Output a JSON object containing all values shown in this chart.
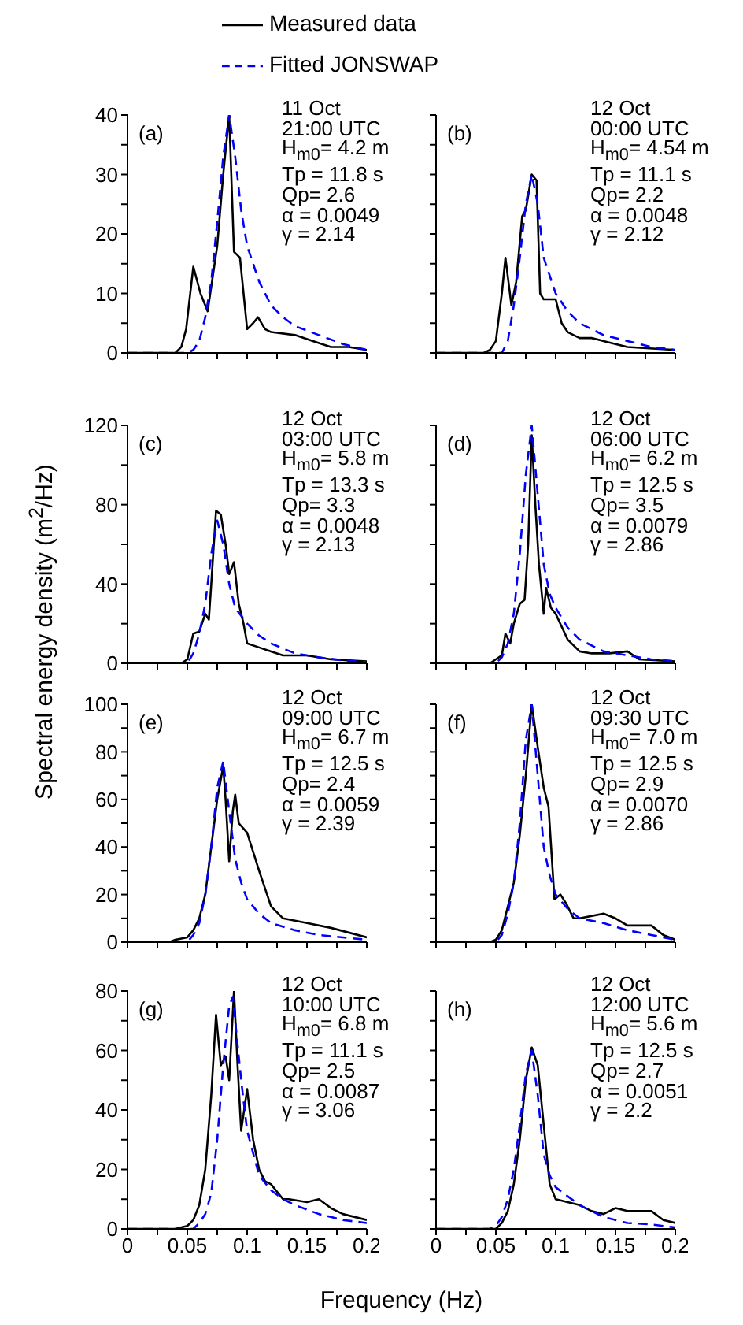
{
  "chart_data": [
    {
      "type": "line",
      "legend": "top",
      "ylim": [
        0,
        40
      ],
      "yticks": [
        0,
        {
          "value": 5,
          "label": null
        },
        10,
        {
          "value": 15,
          "label": null
        },
        20,
        {
          "value": 25,
          "label": null
        },
        30,
        {
          "value": 35,
          "label": null
        },
        40
      ],
      "xlim": [
        0,
        0.2
      ],
      "xticks": [
        0,
        {
          "value": 0.025,
          "label": null
        },
        0.05,
        {
          "value": 0.075,
          "label": null
        },
        0.1,
        {
          "value": 0.125,
          "label": null
        },
        0.15,
        {
          "value": 0.175,
          "label": null
        },
        0.2
      ],
      "tick_labels": "y",
      "annotations": [
        "(a)",
        "11 Oct",
        "21:00 UTC",
        "H$_{m0}$= 4.2 m",
        "Tp = 11.8 s",
        "Qp= 2.6",
        "α = 0.0049",
        "γ = 2.14"
      ],
      "series": [
        {
          "name": "Measured data",
          "color": "#000000",
          "line_style": "solid",
          "x": [
            0,
            0.04,
            0.045,
            0.049,
            0.055,
            0.061,
            0.067,
            0.075,
            0.08,
            0.085,
            0.089,
            0.094,
            0.1,
            0.105,
            0.109,
            0.115,
            0.12,
            0.14,
            0.155,
            0.17,
            0.185,
            0.2
          ],
          "values": [
            0,
            0,
            1,
            4,
            14.5,
            10,
            7,
            18,
            30,
            40,
            17,
            16,
            4,
            5,
            6,
            4,
            3.5,
            3,
            2,
            1,
            1,
            0.5
          ]
        },
        {
          "name": "Fitted JONSWAP",
          "color": "#0000ff",
          "line_style": "dashed",
          "x": [
            0,
            0.05,
            0.055,
            0.06,
            0.065,
            0.07,
            0.075,
            0.08,
            0.085,
            0.09,
            0.095,
            0.1,
            0.11,
            0.12,
            0.13,
            0.14,
            0.16,
            0.18,
            0.2
          ],
          "values": [
            0,
            0,
            0.5,
            2,
            6,
            12,
            22,
            33,
            40,
            33,
            24,
            18,
            12,
            8,
            6,
            4.5,
            3,
            1.5,
            0.5
          ]
        }
      ]
    },
    {
      "type": "line",
      "ylim": [
        0,
        40
      ],
      "yticks": [
        0,
        {
          "value": 5,
          "label": null
        },
        10,
        {
          "value": 15,
          "label": null
        },
        20,
        {
          "value": 25,
          "label": null
        },
        30,
        {
          "value": 35,
          "label": null
        },
        40
      ],
      "xlim": [
        0,
        0.2
      ],
      "xticks": [
        0,
        {
          "value": 0.025,
          "label": null
        },
        0.05,
        {
          "value": 0.075,
          "label": null
        },
        0.1,
        {
          "value": 0.125,
          "label": null
        },
        0.15,
        {
          "value": 0.175,
          "label": null
        },
        0.2
      ],
      "tick_labels": false,
      "annotations": [
        "(b)",
        "12 Oct",
        "00:00 UTC",
        "H$_{m0}$= 4.54 m",
        "Tp = 11.1 s",
        "Qp= 2.2",
        "α = 0.0048",
        "γ = 2.12"
      ],
      "series": [
        {
          "color": "#000000",
          "line_style": "solid",
          "x": [
            0,
            0.04,
            0.045,
            0.05,
            0.055,
            0.058,
            0.063,
            0.067,
            0.072,
            0.075,
            0.08,
            0.084,
            0.087,
            0.09,
            0.1,
            0.105,
            0.11,
            0.12,
            0.13,
            0.14,
            0.16,
            0.2
          ],
          "values": [
            0,
            0,
            0.5,
            2,
            10,
            16,
            8,
            12,
            23,
            24,
            30,
            29,
            10,
            9,
            9,
            5,
            3.5,
            2.5,
            2.5,
            2,
            1,
            0.5
          ]
        },
        {
          "color": "#0000ff",
          "line_style": "dashed",
          "x": [
            0,
            0.055,
            0.06,
            0.065,
            0.07,
            0.075,
            0.08,
            0.085,
            0.09,
            0.1,
            0.11,
            0.12,
            0.14,
            0.16,
            0.18,
            0.2
          ],
          "values": [
            0,
            0,
            2,
            8,
            16,
            25,
            30,
            25,
            16,
            10,
            7,
            5,
            3,
            2,
            1,
            0.5
          ]
        }
      ]
    },
    {
      "type": "line",
      "ylabel": "Spectral energy density (m$^{2}$/Hz)",
      "ylim": [
        0,
        120
      ],
      "yticks": [
        0,
        {
          "value": 20,
          "label": null
        },
        40,
        {
          "value": 60,
          "label": null
        },
        80,
        {
          "value": 100,
          "label": null
        },
        120
      ],
      "xlim": [
        0,
        0.2
      ],
      "xticks": [
        0,
        {
          "value": 0.025,
          "label": null
        },
        0.05,
        {
          "value": 0.075,
          "label": null
        },
        0.1,
        {
          "value": 0.125,
          "label": null
        },
        0.15,
        {
          "value": 0.175,
          "label": null
        },
        0.2
      ],
      "tick_labels": "y",
      "annotations": [
        "(c)",
        "12 Oct",
        "03:00 UTC",
        "H$_{m0}$= 5.8 m",
        "Tp = 13.3 s",
        "Qp= 3.3",
        "α = 0.0048",
        "γ = 2.13"
      ],
      "series": [
        {
          "color": "#000000",
          "line_style": "solid",
          "x": [
            0,
            0.045,
            0.05,
            0.055,
            0.06,
            0.065,
            0.068,
            0.07,
            0.074,
            0.078,
            0.082,
            0.085,
            0.089,
            0.093,
            0.097,
            0.1,
            0.11,
            0.12,
            0.13,
            0.15,
            0.17,
            0.2
          ],
          "values": [
            0,
            0,
            2,
            15,
            16,
            25,
            22,
            40,
            77,
            75,
            60,
            45,
            51,
            30,
            20,
            10,
            8,
            6,
            4,
            4,
            2,
            1
          ]
        },
        {
          "color": "#0000ff",
          "line_style": "dashed",
          "x": [
            0,
            0.05,
            0.055,
            0.06,
            0.065,
            0.07,
            0.075,
            0.08,
            0.085,
            0.09,
            0.1,
            0.11,
            0.12,
            0.14,
            0.16,
            0.18,
            0.2
          ],
          "values": [
            0,
            0,
            5,
            15,
            30,
            55,
            72,
            60,
            40,
            28,
            20,
            14,
            10,
            5,
            3,
            1.5,
            0.5
          ]
        }
      ]
    },
    {
      "type": "line",
      "ylim": [
        0,
        120
      ],
      "yticks": [
        0,
        {
          "value": 20,
          "label": null
        },
        40,
        {
          "value": 60,
          "label": null
        },
        80,
        {
          "value": 100,
          "label": null
        },
        120
      ],
      "xlim": [
        0,
        0.2
      ],
      "xticks": [
        0,
        {
          "value": 0.025,
          "label": null
        },
        0.05,
        {
          "value": 0.075,
          "label": null
        },
        0.1,
        {
          "value": 0.125,
          "label": null
        },
        0.15,
        {
          "value": 0.175,
          "label": null
        },
        0.2
      ],
      "tick_labels": false,
      "annotations": [
        "(d)",
        "12 Oct",
        "06:00 UTC",
        "H$_{m0}$= 6.2 m",
        "Tp = 12.5 s",
        "Qp= 3.5",
        "α = 0.0079",
        "γ = 2.86"
      ],
      "series": [
        {
          "color": "#000000",
          "line_style": "solid",
          "x": [
            0,
            0.045,
            0.05,
            0.055,
            0.058,
            0.062,
            0.065,
            0.07,
            0.074,
            0.077,
            0.08,
            0.083,
            0.086,
            0.09,
            0.092,
            0.096,
            0.1,
            0.11,
            0.12,
            0.13,
            0.145,
            0.16,
            0.17,
            0.2
          ],
          "values": [
            0,
            0,
            2,
            4,
            15,
            10,
            20,
            30,
            32,
            60,
            115,
            80,
            50,
            25,
            38,
            28,
            25,
            12,
            6,
            5,
            5,
            6,
            2,
            1
          ]
        },
        {
          "color": "#0000ff",
          "line_style": "dashed",
          "x": [
            0,
            0.05,
            0.055,
            0.06,
            0.065,
            0.07,
            0.075,
            0.08,
            0.085,
            0.09,
            0.095,
            0.1,
            0.11,
            0.12,
            0.14,
            0.16,
            0.18,
            0.2
          ],
          "values": [
            0,
            0,
            3,
            10,
            25,
            55,
            95,
            120,
            85,
            50,
            35,
            28,
            18,
            12,
            6,
            4,
            2,
            1
          ]
        }
      ]
    },
    {
      "type": "line",
      "ylim": [
        0,
        100
      ],
      "yticks": [
        0,
        {
          "value": 10,
          "label": null
        },
        20,
        {
          "value": 30,
          "label": null
        },
        40,
        {
          "value": 50,
          "label": null
        },
        60,
        {
          "value": 70,
          "label": null
        },
        80,
        {
          "value": 90,
          "label": null
        },
        100
      ],
      "xlim": [
        0,
        0.2
      ],
      "xticks": [
        0,
        {
          "value": 0.025,
          "label": null
        },
        0.05,
        {
          "value": 0.075,
          "label": null
        },
        0.1,
        {
          "value": 0.125,
          "label": null
        },
        0.15,
        {
          "value": 0.175,
          "label": null
        },
        0.2
      ],
      "tick_labels": "y",
      "annotations": [
        "(e)",
        "12 Oct",
        "09:00 UTC",
        "H$_{m0}$= 6.7 m",
        "Tp = 12.5 s",
        "Qp= 2.4",
        "α = 0.0059",
        "γ = 2.39"
      ],
      "series": [
        {
          "color": "#000000",
          "line_style": "solid",
          "x": [
            0,
            0.035,
            0.04,
            0.05,
            0.055,
            0.06,
            0.065,
            0.07,
            0.075,
            0.08,
            0.082,
            0.085,
            0.088,
            0.09,
            0.093,
            0.1,
            0.11,
            0.12,
            0.13,
            0.15,
            0.17,
            0.2
          ],
          "values": [
            0,
            0,
            1,
            2,
            5,
            10,
            20,
            40,
            60,
            74,
            60,
            34,
            55,
            62,
            50,
            46,
            30,
            15,
            10,
            8,
            6,
            2
          ]
        },
        {
          "color": "#0000ff",
          "line_style": "dashed",
          "x": [
            0,
            0.05,
            0.055,
            0.06,
            0.065,
            0.07,
            0.075,
            0.08,
            0.085,
            0.09,
            0.095,
            0.1,
            0.11,
            0.12,
            0.14,
            0.16,
            0.18,
            0.2
          ],
          "values": [
            0,
            0,
            3,
            8,
            20,
            40,
            65,
            76,
            55,
            35,
            25,
            18,
            12,
            8,
            5,
            3,
            2,
            1
          ]
        }
      ]
    },
    {
      "type": "line",
      "ylim": [
        0,
        100
      ],
      "yticks": [
        0,
        {
          "value": 10,
          "label": null
        },
        20,
        {
          "value": 30,
          "label": null
        },
        40,
        {
          "value": 50,
          "label": null
        },
        60,
        {
          "value": 70,
          "label": null
        },
        80,
        {
          "value": 90,
          "label": null
        },
        100
      ],
      "xlim": [
        0,
        0.2
      ],
      "xticks": [
        0,
        {
          "value": 0.025,
          "label": null
        },
        0.05,
        {
          "value": 0.075,
          "label": null
        },
        0.1,
        {
          "value": 0.125,
          "label": null
        },
        0.15,
        {
          "value": 0.175,
          "label": null
        },
        0.2
      ],
      "tick_labels": false,
      "annotations": [
        "(f)",
        "12 Oct",
        "09:30 UTC",
        "H$_{m0}$= 7.0 m",
        "Tp = 12.5 s",
        "Qp= 2.9",
        "α = 0.0070",
        "γ = 2.86"
      ],
      "series": [
        {
          "color": "#000000",
          "line_style": "solid",
          "x": [
            0,
            0.045,
            0.05,
            0.055,
            0.06,
            0.065,
            0.07,
            0.075,
            0.08,
            0.085,
            0.09,
            0.094,
            0.099,
            0.104,
            0.109,
            0.115,
            0.12,
            0.14,
            0.15,
            0.16,
            0.18,
            0.19,
            0.2
          ],
          "values": [
            0,
            0,
            1,
            5,
            15,
            25,
            45,
            70,
            100,
            82,
            65,
            57,
            18,
            20,
            16,
            10,
            10,
            12,
            10,
            7,
            7,
            3,
            1
          ]
        },
        {
          "color": "#0000ff",
          "line_style": "dashed",
          "x": [
            0,
            0.05,
            0.055,
            0.06,
            0.065,
            0.07,
            0.075,
            0.08,
            0.085,
            0.09,
            0.095,
            0.1,
            0.11,
            0.12,
            0.14,
            0.16,
            0.18,
            0.2
          ],
          "values": [
            0,
            0,
            3,
            12,
            25,
            50,
            85,
            100,
            70,
            40,
            28,
            20,
            14,
            10,
            8,
            5,
            3,
            1
          ]
        }
      ]
    },
    {
      "type": "line",
      "xlabel": "Frequency (Hz)",
      "ylim": [
        0,
        80
      ],
      "yticks": [
        0,
        {
          "value": 10,
          "label": null
        },
        20,
        {
          "value": 30,
          "label": null
        },
        40,
        {
          "value": 50,
          "label": null
        },
        60,
        {
          "value": 70,
          "label": null
        },
        80
      ],
      "xlim": [
        0,
        0.2
      ],
      "xticks": [
        0,
        {
          "value": 0.025,
          "label": null
        },
        0.05,
        {
          "value": 0.075,
          "label": null
        },
        0.1,
        {
          "value": 0.125,
          "label": null
        },
        0.15,
        {
          "value": 0.175,
          "label": null
        },
        0.2
      ],
      "annotations": [
        "(g)",
        "12 Oct",
        "10:00 UTC",
        "H$_{m0}$= 6.8 m",
        "Tp = 11.1 s",
        "Qp= 2.5",
        "α = 0.0087",
        "γ = 3.06"
      ],
      "series": [
        {
          "color": "#000000",
          "line_style": "solid",
          "x": [
            0,
            0.04,
            0.045,
            0.05,
            0.055,
            0.06,
            0.065,
            0.07,
            0.074,
            0.078,
            0.082,
            0.085,
            0.089,
            0.092,
            0.095,
            0.1,
            0.105,
            0.11,
            0.115,
            0.12,
            0.13,
            0.135,
            0.15,
            0.16,
            0.17,
            0.18,
            0.2
          ],
          "values": [
            0,
            0,
            0.5,
            1,
            3,
            8,
            20,
            45,
            72,
            55,
            58,
            50,
            80,
            55,
            33,
            47,
            30,
            20,
            16,
            15,
            10,
            10,
            9,
            10,
            7,
            5,
            3
          ]
        },
        {
          "color": "#0000ff",
          "line_style": "dashed",
          "x": [
            0,
            0.055,
            0.06,
            0.065,
            0.07,
            0.075,
            0.08,
            0.085,
            0.088,
            0.09,
            0.095,
            0.1,
            0.11,
            0.12,
            0.13,
            0.14,
            0.16,
            0.18,
            0.2
          ],
          "values": [
            0,
            0,
            2,
            5,
            12,
            30,
            55,
            75,
            78,
            70,
            50,
            33,
            18,
            13,
            10,
            8,
            5,
            3,
            2
          ]
        }
      ]
    },
    {
      "type": "line",
      "ylim": [
        0,
        80
      ],
      "yticks": [
        0,
        {
          "value": 10,
          "label": null
        },
        20,
        {
          "value": 30,
          "label": null
        },
        40,
        {
          "value": 50,
          "label": null
        },
        60,
        {
          "value": 70,
          "label": null
        },
        80
      ],
      "xlim": [
        0,
        0.2
      ],
      "xticks": [
        0,
        {
          "value": 0.025,
          "label": null
        },
        0.05,
        {
          "value": 0.075,
          "label": null
        },
        0.1,
        {
          "value": 0.125,
          "label": null
        },
        0.15,
        {
          "value": 0.175,
          "label": null
        },
        0.2
      ],
      "tick_labels": "x",
      "annotations": [
        "(h)",
        "12 Oct",
        "12:00 UTC",
        "H$_{m0}$= 5.6 m",
        "Tp = 12.5 s",
        "Qp= 2.7",
        "α = 0.0051",
        "γ = 2.2"
      ],
      "series": [
        {
          "color": "#000000",
          "line_style": "solid",
          "x": [
            0,
            0.05,
            0.055,
            0.06,
            0.065,
            0.07,
            0.075,
            0.08,
            0.085,
            0.09,
            0.095,
            0.1,
            0.11,
            0.12,
            0.13,
            0.14,
            0.15,
            0.16,
            0.17,
            0.18,
            0.19,
            0.2
          ],
          "values": [
            0,
            0,
            2,
            6,
            15,
            30,
            50,
            61,
            55,
            35,
            15,
            10,
            9,
            8,
            6,
            5,
            7,
            6,
            6,
            6,
            3,
            2
          ]
        },
        {
          "color": "#0000ff",
          "line_style": "dashed",
          "x": [
            0,
            0.045,
            0.05,
            0.055,
            0.06,
            0.065,
            0.07,
            0.075,
            0.08,
            0.085,
            0.09,
            0.095,
            0.1,
            0.11,
            0.12,
            0.14,
            0.16,
            0.18,
            0.2
          ],
          "values": [
            0,
            0,
            1,
            4,
            10,
            20,
            35,
            52,
            60,
            45,
            25,
            18,
            14,
            11,
            8,
            4,
            2,
            1.5,
            0.5
          ]
        }
      ]
    }
  ]
}
